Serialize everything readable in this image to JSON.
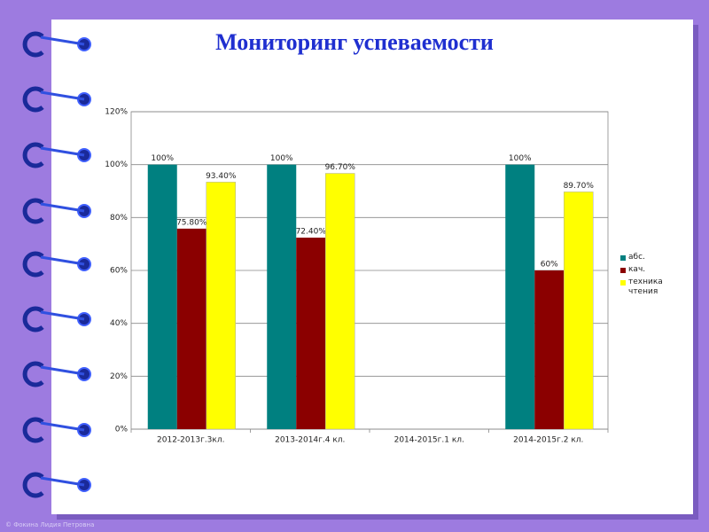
{
  "title": "Мониторинг успеваемости",
  "footer": "© Фокина Лидия Петровна",
  "chart_data": {
    "type": "bar",
    "categories": [
      "2012-2013г.3кл.",
      "2013-2014г.4 кл.",
      "2014-2015г.1 кл.",
      "2014-2015г.2 кл."
    ],
    "series": [
      {
        "name": "абс.",
        "color": "#008080",
        "values": [
          100,
          100,
          null,
          100
        ],
        "value_labels": [
          "100%",
          "100%",
          null,
          "100%"
        ]
      },
      {
        "name": "кач.",
        "color": "#8b0000",
        "values": [
          75.8,
          72.4,
          null,
          60
        ],
        "value_labels": [
          "75.80%",
          "72.40%",
          null,
          "60%"
        ]
      },
      {
        "name": "техника чтения",
        "color": "#ffff00",
        "values": [
          93.4,
          96.7,
          null,
          89.7
        ],
        "value_labels": [
          "93.40%",
          "96.70%",
          null,
          "89.70%"
        ]
      }
    ],
    "ylim": [
      0,
      120
    ],
    "yticks": [
      {
        "value": 0,
        "label": "0%"
      },
      {
        "value": 20,
        "label": "20%"
      },
      {
        "value": 40,
        "label": "40%"
      },
      {
        "value": 60,
        "label": "60%"
      },
      {
        "value": 80,
        "label": "80%"
      },
      {
        "value": 100,
        "label": "100%"
      },
      {
        "value": 120,
        "label": "120%"
      }
    ],
    "grid": true,
    "legend": "right"
  }
}
